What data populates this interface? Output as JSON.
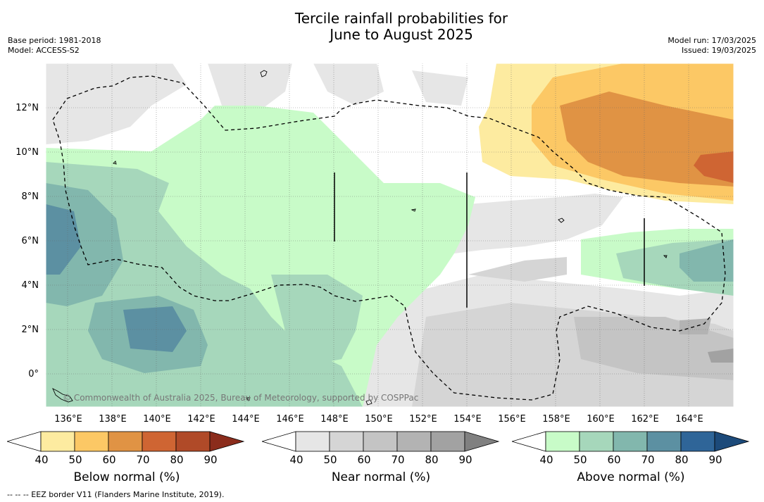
{
  "title_line1": "Tercile rainfall probabilities for",
  "title_line2": "June to August 2025",
  "meta_left": {
    "base_period": "Base period: 1981-2018",
    "model": "Model: ACCESS-S2"
  },
  "meta_right": {
    "model_run": "Model run: 17/03/2025",
    "issued": "Issued: 19/03/2025"
  },
  "map": {
    "x_ticks": [
      "136°E",
      "138°E",
      "140°E",
      "142°E",
      "144°E",
      "146°E",
      "148°E",
      "150°E",
      "152°E",
      "154°E",
      "156°E",
      "158°E",
      "160°E",
      "162°E",
      "164°E"
    ],
    "y_ticks": [
      "12°N",
      "10°N",
      "8°N",
      "6°N",
      "4°N",
      "2°N",
      "0°"
    ],
    "credit": "© Commonwealth of Australia 2025, Bureau of Meteorology, supported by COSPPac"
  },
  "legends": [
    {
      "label": "Below normal (%)",
      "ticks": [
        "40",
        "50",
        "60",
        "70",
        "80",
        "90"
      ],
      "colors": [
        "#ffffff",
        "#fdeba0",
        "#fcc865",
        "#e09344",
        "#cf6533",
        "#b04a28",
        "#8b2c1c"
      ]
    },
    {
      "label": "Near normal (%)",
      "ticks": [
        "40",
        "50",
        "60",
        "70",
        "80",
        "90"
      ],
      "colors": [
        "#ffffff",
        "#e6e6e6",
        "#d5d5d5",
        "#c4c4c4",
        "#b3b3b3",
        "#a2a2a2",
        "#808080"
      ]
    },
    {
      "label": "Above normal (%)",
      "ticks": [
        "40",
        "50",
        "60",
        "70",
        "80",
        "90"
      ],
      "colors": [
        "#ffffff",
        "#c8fbc8",
        "#a6d7bb",
        "#82b7ad",
        "#5c90a2",
        "#2f6598",
        "#1c4a7a"
      ]
    }
  ],
  "footnote": "--  --  -- EEZ border V11 (Flanders Marine Institute, 2019)."
}
